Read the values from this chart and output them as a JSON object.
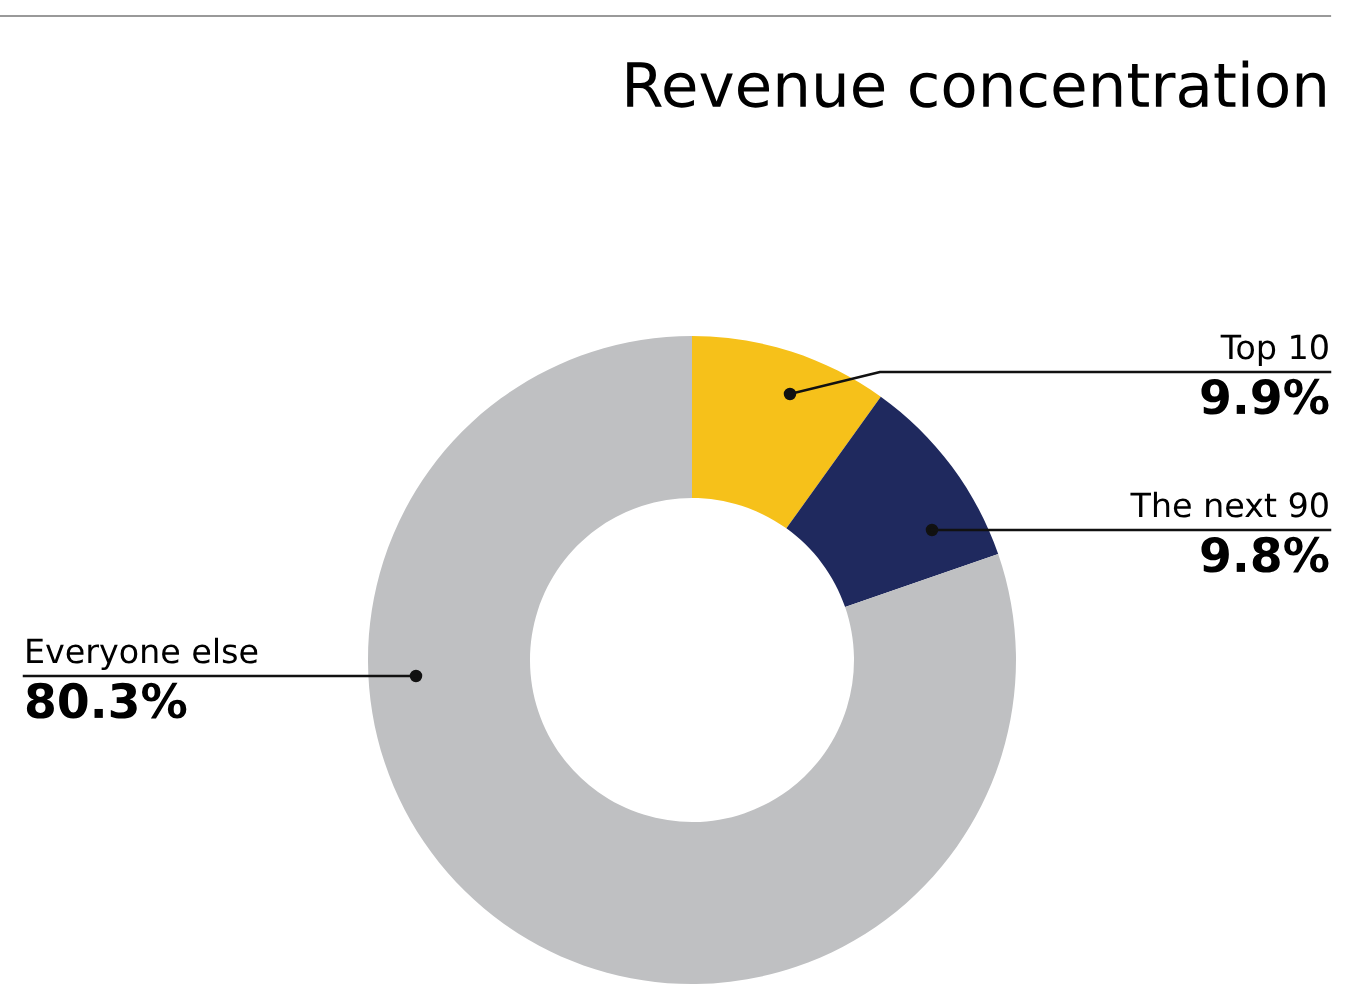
{
  "chart_data": {
    "type": "donut",
    "title": "Revenue concentration",
    "categories": [
      "Top 10",
      "The next 90",
      "Everyone else"
    ],
    "values": [
      9.9,
      9.8,
      80.3
    ],
    "colors": [
      "#f6c11a",
      "#1f295e",
      "#bfc0c2"
    ],
    "value_labels": [
      "9.9%",
      "9.8%",
      "80.3%"
    ],
    "legend": false
  }
}
